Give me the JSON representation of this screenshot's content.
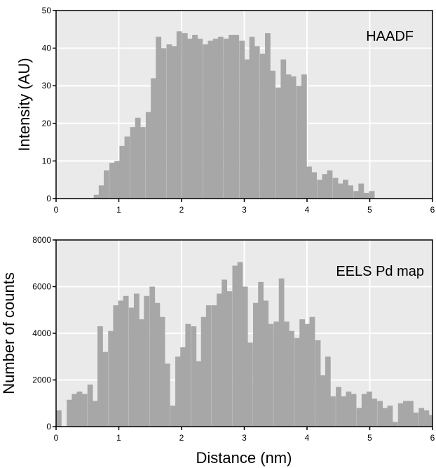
{
  "colors": {
    "plot_background": "#eaeaea",
    "bar_fill": "#a7a7a7",
    "grid": "#ffffff",
    "frame": "#000000"
  },
  "figure": {
    "x_axis_title": "Distance (nm)"
  },
  "chart_data": [
    {
      "type": "bar",
      "panel_label": "HAADF",
      "ylabel": "Intensity (AU)",
      "xlabel": "",
      "xlim": [
        0,
        6
      ],
      "ylim": [
        0,
        50
      ],
      "x_ticks": [
        "0",
        "1",
        "2",
        "3",
        "4",
        "5",
        "6"
      ],
      "y_ticks": [
        "0",
        "10",
        "20",
        "30",
        "40",
        "50"
      ],
      "grid": true,
      "bin_width": 0.0825,
      "x": [
        0.6,
        0.68,
        0.76,
        0.85,
        0.93,
        1.01,
        1.09,
        1.18,
        1.26,
        1.34,
        1.43,
        1.51,
        1.59,
        1.67,
        1.76,
        1.84,
        1.92,
        2.01,
        2.09,
        2.17,
        2.25,
        2.34,
        2.42,
        2.5,
        2.58,
        2.67,
        2.75,
        2.83,
        2.92,
        3.0,
        3.08,
        3.16,
        3.25,
        3.33,
        3.41,
        3.5,
        3.58,
        3.66,
        3.74,
        3.83,
        3.91,
        3.99,
        4.07,
        4.16,
        4.24,
        4.32,
        4.41,
        4.49,
        4.57,
        4.65,
        4.74,
        4.82,
        4.9,
        4.99,
        5.07,
        5.15,
        5.23
      ],
      "values": [
        1,
        3.5,
        7.5,
        9.5,
        10,
        14,
        16.5,
        19,
        21.5,
        19,
        23,
        32,
        43,
        40,
        41,
        40.5,
        44.5,
        44,
        42.5,
        43.5,
        42.5,
        41,
        42,
        42.5,
        43,
        42.5,
        43.5,
        43.5,
        42,
        37,
        43,
        40.5,
        38.5,
        44,
        34,
        29.5,
        37,
        33,
        32.5,
        30,
        33,
        8.5,
        7,
        5,
        6.5,
        7.5,
        5.5,
        4,
        5,
        3.5,
        2,
        4,
        1.5,
        2,
        0,
        0,
        0
      ]
    },
    {
      "type": "bar",
      "panel_label": "EELS Pd map",
      "ylabel": "Number of counts",
      "xlabel": "Distance (nm)",
      "xlim": [
        0,
        6
      ],
      "ylim": [
        0,
        8000
      ],
      "x_ticks": [
        "0",
        "1",
        "2",
        "3",
        "4",
        "5",
        "6"
      ],
      "y_ticks": [
        "0",
        "2000",
        "4000",
        "6000",
        "8000"
      ],
      "grid": true,
      "bin_width": 0.0825,
      "x": [
        0.0,
        0.08,
        0.17,
        0.25,
        0.33,
        0.41,
        0.5,
        0.58,
        0.66,
        0.74,
        0.83,
        0.91,
        0.99,
        1.07,
        1.16,
        1.24,
        1.32,
        1.4,
        1.49,
        1.57,
        1.65,
        1.73,
        1.82,
        1.9,
        1.98,
        2.06,
        2.15,
        2.23,
        2.31,
        2.39,
        2.48,
        2.56,
        2.64,
        2.72,
        2.81,
        2.89,
        2.97,
        3.05,
        3.14,
        3.22,
        3.3,
        3.38,
        3.47,
        3.55,
        3.63,
        3.71,
        3.8,
        3.88,
        3.96,
        4.04,
        4.13,
        4.21,
        4.29,
        4.37,
        4.46,
        4.54,
        4.62,
        4.7,
        4.79,
        4.87,
        4.95,
        5.03,
        5.12,
        5.2,
        5.28,
        5.36,
        5.45,
        5.53,
        5.61,
        5.69,
        5.78,
        5.86,
        5.94
      ],
      "values": [
        700,
        0,
        1150,
        1400,
        1500,
        1400,
        1800,
        1100,
        4300,
        3200,
        4100,
        5200,
        5400,
        5600,
        5100,
        5700,
        4600,
        5600,
        6000,
        5300,
        4700,
        2700,
        900,
        3000,
        3400,
        4400,
        4300,
        2800,
        4700,
        5200,
        5200,
        5700,
        6300,
        5800,
        6900,
        7050,
        6000,
        3600,
        5300,
        6200,
        5400,
        4400,
        4500,
        6350,
        4500,
        4100,
        3800,
        4600,
        4400,
        4700,
        3700,
        2200,
        3000,
        1300,
        1700,
        1300,
        1500,
        1400,
        800,
        1400,
        1500,
        1200,
        1100,
        800,
        900,
        200,
        1000,
        1100,
        1100,
        600,
        800,
        700,
        500
      ]
    }
  ]
}
